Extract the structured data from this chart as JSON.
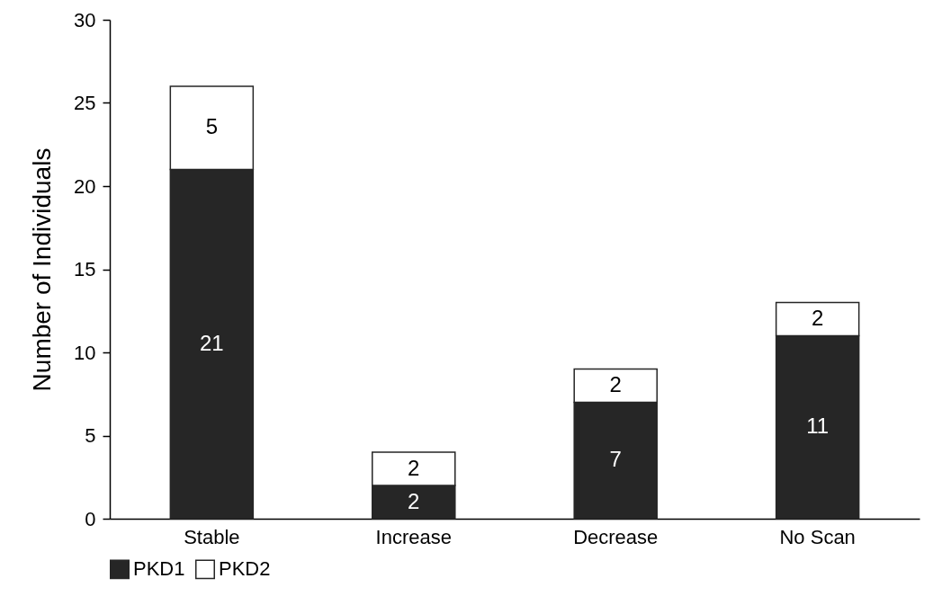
{
  "chart_data": {
    "type": "bar",
    "stacked": true,
    "ylabel": "Number of Individuals",
    "categories": [
      "Stable",
      "Increase",
      "Decrease",
      "No Scan"
    ],
    "series": [
      {
        "name": "PKD1",
        "color": "#262626",
        "values": [
          21,
          2,
          7,
          11
        ]
      },
      {
        "name": "PKD2",
        "color": "#ffffff",
        "values": [
          5,
          2,
          2,
          2
        ]
      }
    ],
    "ylim": [
      0,
      30
    ],
    "yticks": [
      0,
      5,
      10,
      15,
      20,
      25,
      30
    ],
    "grid": false,
    "legend": "bottom",
    "data_labels": true
  }
}
